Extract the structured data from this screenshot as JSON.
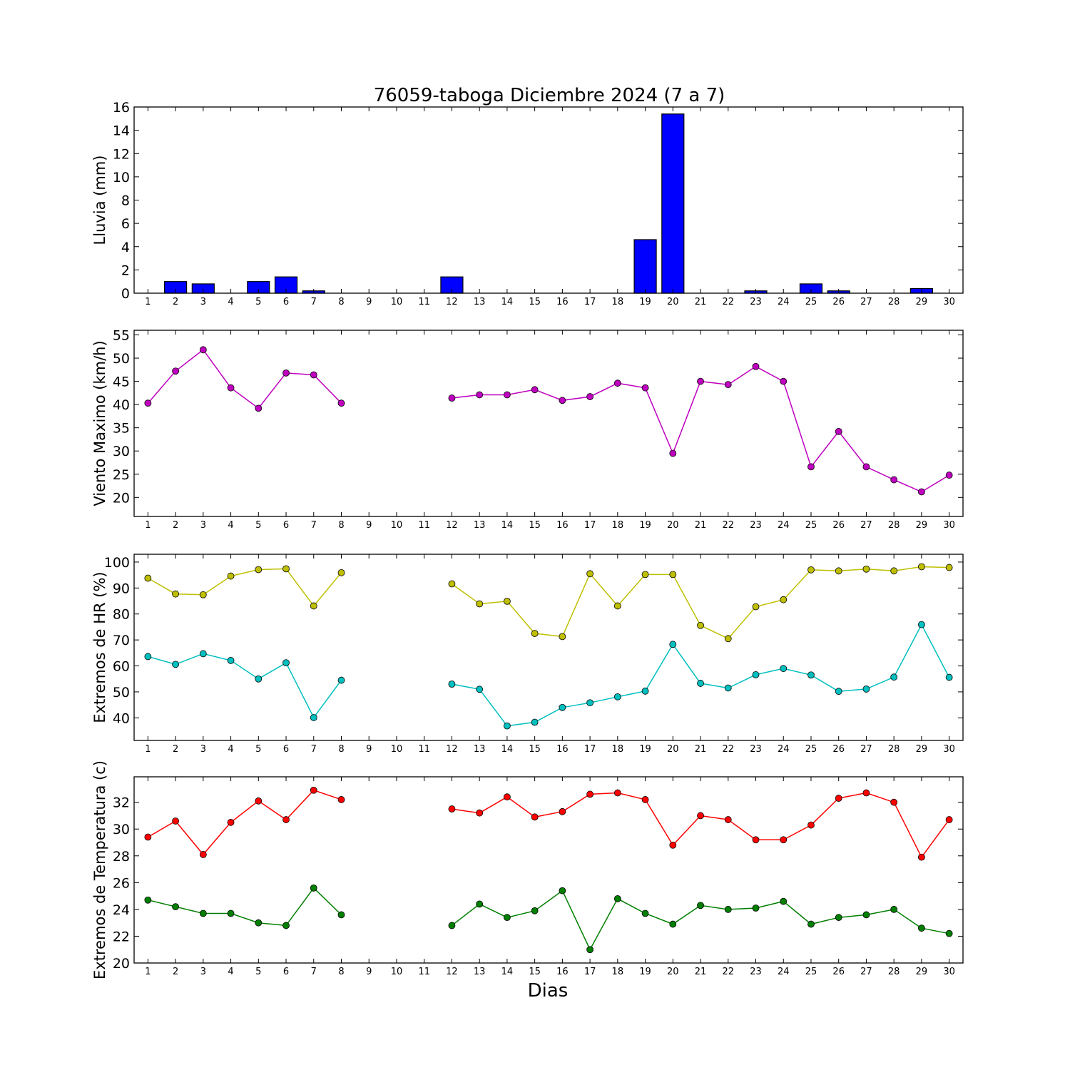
{
  "figure": {
    "title": "76059-taboga Diciembre 2024  (7 a 7)",
    "xlabel": "Dias",
    "days": [
      "1",
      "2",
      "3",
      "4",
      "5",
      "6",
      "7",
      "8",
      "9",
      "10",
      "11",
      "12",
      "13",
      "14",
      "15",
      "16",
      "17",
      "18",
      "19",
      "20",
      "21",
      "22",
      "23",
      "24",
      "25",
      "26",
      "27",
      "28",
      "29",
      "30"
    ]
  },
  "chart_data": [
    {
      "type": "bar",
      "ylabel": "Lluvia (mm)",
      "ylim": [
        0,
        16
      ],
      "yticks": [
        0,
        2,
        4,
        6,
        8,
        10,
        12,
        14,
        16
      ],
      "series": [
        {
          "color": "#0000ff",
          "values": [
            0,
            1.0,
            0.8,
            0,
            1.0,
            1.4,
            0.2,
            0,
            null,
            null,
            null,
            1.4,
            0,
            0,
            0,
            0,
            0,
            0,
            4.6,
            15.4,
            0,
            0,
            0.2,
            0,
            0.8,
            0.2,
            0,
            0,
            0.4,
            0
          ]
        }
      ]
    },
    {
      "type": "line",
      "ylabel": "Viento Maximo (km/h)",
      "ylim": [
        15.9,
        56
      ],
      "yticks": [
        20,
        25,
        30,
        35,
        40,
        45,
        50,
        55
      ],
      "series": [
        {
          "color": "#bf00bf",
          "values": [
            40.3,
            47.2,
            51.8,
            43.6,
            39.2,
            46.8,
            46.4,
            40.3,
            null,
            null,
            null,
            41.4,
            42.1,
            42.1,
            43.2,
            40.9,
            41.7,
            44.6,
            43.6,
            29.5,
            45.0,
            44.3,
            48.2,
            45.0,
            26.6,
            34.2,
            26.6,
            23.8,
            21.2,
            24.8
          ]
        }
      ]
    },
    {
      "type": "line",
      "ylabel": "Extremos de HR (%)",
      "ylim": [
        31.3,
        103
      ],
      "yticks": [
        40,
        50,
        60,
        70,
        80,
        90,
        100
      ],
      "series": [
        {
          "color": "#bfbf00",
          "values": [
            93.8,
            87.7,
            87.4,
            94.6,
            97.1,
            97.4,
            83.1,
            95.9,
            null,
            null,
            null,
            91.6,
            83.9,
            84.9,
            72.5,
            71.3,
            95.5,
            83.1,
            95.2,
            95.2,
            75.6,
            70.5,
            82.8,
            85.5,
            97.0,
            96.6,
            97.3,
            96.6,
            98.2,
            97.9
          ]
        },
        {
          "color": "#00bfbf",
          "values": [
            63.6,
            60.6,
            64.7,
            62.1,
            55.0,
            61.2,
            40.1,
            54.5,
            null,
            null,
            null,
            53.0,
            51.0,
            36.9,
            38.3,
            44.0,
            45.8,
            48.1,
            50.3,
            68.3,
            53.3,
            51.5,
            56.6,
            59.0,
            56.5,
            50.2,
            51.1,
            55.7,
            75.9,
            55.6
          ]
        }
      ]
    },
    {
      "type": "line",
      "ylabel": "Extremos de Temperatura (c)",
      "ylim": [
        20,
        33.9
      ],
      "yticks": [
        20,
        22,
        24,
        26,
        28,
        30,
        32
      ],
      "series": [
        {
          "color": "#ff0000",
          "values": [
            29.4,
            30.6,
            28.1,
            30.5,
            32.1,
            30.7,
            32.9,
            32.2,
            null,
            null,
            null,
            31.5,
            31.2,
            32.4,
            30.9,
            31.3,
            32.6,
            32.7,
            32.2,
            28.8,
            31.0,
            30.7,
            29.2,
            29.2,
            30.3,
            32.3,
            32.7,
            32.0,
            27.9,
            30.7
          ]
        },
        {
          "color": "#007f00",
          "values": [
            24.7,
            24.2,
            23.7,
            23.7,
            23.0,
            22.8,
            25.6,
            23.6,
            null,
            null,
            null,
            22.8,
            24.4,
            23.4,
            23.9,
            25.4,
            21.0,
            24.8,
            23.7,
            22.9,
            24.3,
            24.0,
            24.1,
            24.6,
            22.9,
            23.4,
            23.6,
            24.0,
            22.6,
            22.2
          ]
        }
      ]
    }
  ]
}
